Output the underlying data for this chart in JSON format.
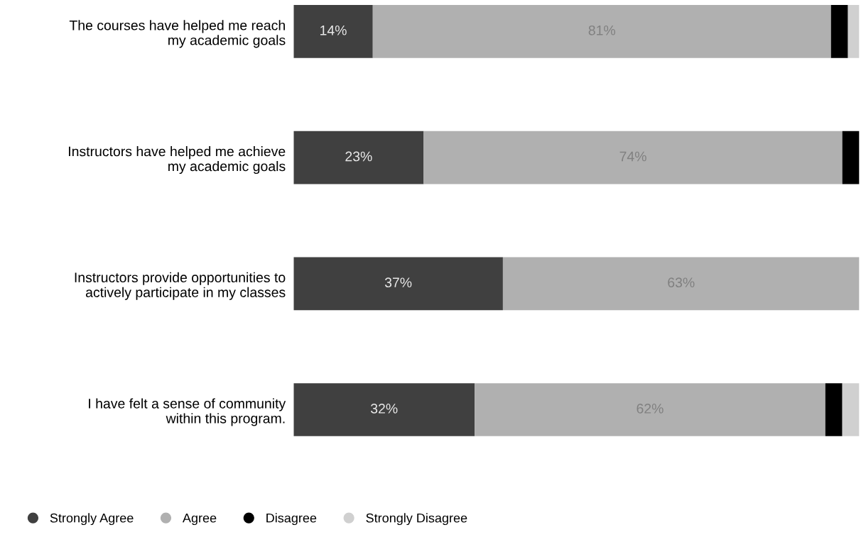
{
  "chart_data": {
    "type": "bar",
    "orientation": "horizontal",
    "stacked": true,
    "categories": [
      "The courses have helped me reach\nmy academic goals",
      "Instructors have helped me achieve\nmy academic goals",
      "Instructors provide opportunities to\nactively participate in my classes",
      "I have felt a sense of community\nwithin this program."
    ],
    "series": [
      {
        "name": "Strongly Agree",
        "color": "#404040",
        "values": [
          14,
          23,
          37,
          32
        ],
        "value_labels": [
          "14%",
          "23%",
          "37%",
          "32%"
        ]
      },
      {
        "name": "Agree",
        "color": "#b0b0b0",
        "values": [
          81,
          74,
          63,
          62
        ],
        "value_labels": [
          "81%",
          "74%",
          "63%",
          "62%"
        ]
      },
      {
        "name": "Disagree",
        "color": "#000000",
        "values": [
          3,
          3,
          0,
          3
        ],
        "value_labels": [
          null,
          null,
          null,
          null
        ]
      },
      {
        "name": "Strongly Disagree",
        "color": "#d0d0d0",
        "values": [
          2,
          0,
          0,
          3
        ],
        "value_labels": [
          null,
          null,
          null,
          null
        ]
      }
    ],
    "xlim": [
      0,
      100
    ],
    "tick_labels": "y",
    "legend": "bottom left",
    "grid": false
  }
}
